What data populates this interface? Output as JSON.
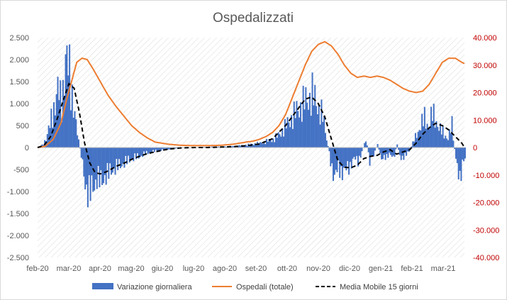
{
  "chart_data": {
    "type": "bar+line",
    "title": "Ospedalizzati",
    "x_categories": [
      "feb-20",
      "mar-20",
      "apr-20",
      "mag-20",
      "giu-20",
      "lug-20",
      "ago-20",
      "set-20",
      "ott-20",
      "nov-20",
      "dic-20",
      "gen-21",
      "feb-21",
      "mar-21"
    ],
    "y_left": {
      "ticks": [
        "2.500",
        "2.000",
        "1.500",
        "1.000",
        "500",
        "0",
        "-500",
        "-1.000",
        "-1.500",
        "-2.000",
        "-2.500"
      ],
      "range": [
        -2500,
        2500
      ]
    },
    "y_right": {
      "ticks": [
        "40.000",
        "30.000",
        "20.000",
        "10.000",
        "0",
        "-10.000",
        "-20.000",
        "-30.000",
        "-40.000"
      ],
      "range": [
        -40000,
        40000
      ],
      "tick_color": "#c00000"
    },
    "colors": {
      "bars": "#4472c4",
      "hospital_line": "#ed7d31",
      "moving_avg": "#000000",
      "hatch": "#d9d9d9"
    },
    "series": [
      {
        "name": "Variazione giornaliera",
        "kind": "bar",
        "axis": "left",
        "points": [
          [
            0,
            0
          ],
          [
            3,
            50
          ],
          [
            6,
            200
          ],
          [
            9,
            500
          ],
          [
            12,
            900
          ],
          [
            15,
            1300
          ],
          [
            18,
            1000
          ],
          [
            21,
            2000
          ],
          [
            24,
            1700
          ],
          [
            27,
            1000
          ],
          [
            30,
            300
          ],
          [
            33,
            -200
          ],
          [
            36,
            -800
          ],
          [
            39,
            -1100
          ],
          [
            42,
            -900
          ],
          [
            45,
            -700
          ],
          [
            48,
            -800
          ],
          [
            51,
            -650
          ],
          [
            54,
            -600
          ],
          [
            57,
            -500
          ],
          [
            60,
            -450
          ],
          [
            63,
            -400
          ],
          [
            66,
            -350
          ],
          [
            69,
            -300
          ],
          [
            72,
            -250
          ],
          [
            75,
            -220
          ],
          [
            78,
            -200
          ],
          [
            81,
            -150
          ],
          [
            84,
            -120
          ],
          [
            87,
            -100
          ],
          [
            90,
            -80
          ],
          [
            95,
            -60
          ],
          [
            100,
            -40
          ],
          [
            105,
            -20
          ],
          [
            110,
            -10
          ],
          [
            120,
            5
          ],
          [
            130,
            15
          ],
          [
            140,
            20
          ],
          [
            150,
            30
          ],
          [
            160,
            60
          ],
          [
            170,
            100
          ],
          [
            180,
            180
          ],
          [
            185,
            300
          ],
          [
            190,
            500
          ],
          [
            195,
            700
          ],
          [
            200,
            900
          ],
          [
            205,
            1050
          ],
          [
            210,
            1200
          ],
          [
            215,
            900
          ],
          [
            218,
            700
          ],
          [
            221,
            200
          ],
          [
            224,
            -300
          ],
          [
            227,
            -700
          ],
          [
            230,
            -450
          ],
          [
            233,
            -550
          ],
          [
            236,
            -500
          ],
          [
            239,
            -400
          ],
          [
            242,
            -250
          ],
          [
            245,
            -300
          ],
          [
            248,
            -100
          ],
          [
            251,
            200
          ],
          [
            254,
            -300
          ],
          [
            257,
            -200
          ],
          [
            260,
            100
          ],
          [
            263,
            -300
          ],
          [
            266,
            -200
          ],
          [
            269,
            -150
          ],
          [
            272,
            -250
          ],
          [
            275,
            50
          ],
          [
            278,
            -300
          ],
          [
            281,
            -150
          ],
          [
            284,
            -100
          ],
          [
            287,
            100
          ],
          [
            290,
            300
          ],
          [
            293,
            500
          ],
          [
            296,
            650
          ],
          [
            299,
            500
          ],
          [
            302,
            750
          ],
          [
            305,
            600
          ],
          [
            308,
            400
          ],
          [
            311,
            300
          ],
          [
            314,
            200
          ],
          [
            317,
            500
          ],
          [
            320,
            -300
          ],
          [
            323,
            -650
          ],
          [
            326,
            -300
          ]
        ]
      },
      {
        "name": "Ospedali (totale)",
        "kind": "line",
        "axis": "right",
        "points": [
          [
            0,
            0
          ],
          [
            6,
            500
          ],
          [
            12,
            3000
          ],
          [
            18,
            9000
          ],
          [
            22,
            17000
          ],
          [
            26,
            24000
          ],
          [
            30,
            31000
          ],
          [
            34,
            32500
          ],
          [
            38,
            32000
          ],
          [
            42,
            29000
          ],
          [
            48,
            24000
          ],
          [
            54,
            19000
          ],
          [
            60,
            15000
          ],
          [
            66,
            11500
          ],
          [
            72,
            8000
          ],
          [
            78,
            5500
          ],
          [
            84,
            3500
          ],
          [
            90,
            2000
          ],
          [
            100,
            1200
          ],
          [
            110,
            800
          ],
          [
            120,
            700
          ],
          [
            130,
            700
          ],
          [
            140,
            800
          ],
          [
            150,
            1200
          ],
          [
            160,
            2000
          ],
          [
            165,
            2300
          ],
          [
            170,
            3000
          ],
          [
            175,
            4000
          ],
          [
            180,
            5500
          ],
          [
            185,
            8000
          ],
          [
            190,
            12000
          ],
          [
            195,
            18000
          ],
          [
            200,
            24000
          ],
          [
            205,
            30000
          ],
          [
            210,
            35000
          ],
          [
            215,
            37500
          ],
          [
            220,
            38500
          ],
          [
            225,
            37000
          ],
          [
            230,
            34000
          ],
          [
            235,
            30000
          ],
          [
            240,
            27000
          ],
          [
            245,
            25500
          ],
          [
            250,
            26000
          ],
          [
            255,
            25500
          ],
          [
            260,
            26000
          ],
          [
            265,
            25500
          ],
          [
            270,
            24500
          ],
          [
            275,
            23000
          ],
          [
            280,
            21500
          ],
          [
            285,
            20500
          ],
          [
            290,
            20000
          ],
          [
            295,
            20500
          ],
          [
            300,
            23000
          ],
          [
            305,
            27000
          ],
          [
            310,
            31000
          ],
          [
            315,
            32500
          ],
          [
            320,
            32500
          ],
          [
            325,
            31000
          ],
          [
            327,
            30500
          ]
        ]
      },
      {
        "name": "Media Mobile 15 giorni",
        "kind": "line",
        "axis": "left",
        "style": "dashed",
        "points": [
          [
            0,
            0
          ],
          [
            5,
            50
          ],
          [
            10,
            250
          ],
          [
            15,
            650
          ],
          [
            20,
            1100
          ],
          [
            24,
            1450
          ],
          [
            28,
            1350
          ],
          [
            32,
            800
          ],
          [
            36,
            100
          ],
          [
            40,
            -350
          ],
          [
            44,
            -570
          ],
          [
            48,
            -600
          ],
          [
            52,
            -560
          ],
          [
            56,
            -500
          ],
          [
            60,
            -430
          ],
          [
            66,
            -360
          ],
          [
            72,
            -270
          ],
          [
            78,
            -200
          ],
          [
            84,
            -140
          ],
          [
            90,
            -100
          ],
          [
            96,
            -60
          ],
          [
            102,
            -30
          ],
          [
            110,
            -10
          ],
          [
            120,
            0
          ],
          [
            130,
            0
          ],
          [
            140,
            10
          ],
          [
            150,
            20
          ],
          [
            160,
            40
          ],
          [
            170,
            80
          ],
          [
            175,
            140
          ],
          [
            180,
            200
          ],
          [
            185,
            350
          ],
          [
            190,
            500
          ],
          [
            195,
            700
          ],
          [
            200,
            900
          ],
          [
            205,
            1100
          ],
          [
            210,
            1150
          ],
          [
            215,
            1000
          ],
          [
            220,
            700
          ],
          [
            225,
            200
          ],
          [
            230,
            -300
          ],
          [
            235,
            -450
          ],
          [
            240,
            -460
          ],
          [
            245,
            -400
          ],
          [
            250,
            -250
          ],
          [
            255,
            -200
          ],
          [
            260,
            -180
          ],
          [
            265,
            -100
          ],
          [
            270,
            -50
          ],
          [
            275,
            -150
          ],
          [
            280,
            -100
          ],
          [
            285,
            -50
          ],
          [
            290,
            100
          ],
          [
            295,
            300
          ],
          [
            300,
            450
          ],
          [
            305,
            550
          ],
          [
            310,
            500
          ],
          [
            315,
            400
          ],
          [
            320,
            250
          ],
          [
            325,
            100
          ],
          [
            327,
            0
          ]
        ]
      }
    ],
    "legend": [
      "Variazione giornaliera",
      "Ospedali (totale)",
      "Media Mobile 15 giorni"
    ],
    "legend_position": "bottom",
    "grid": "none",
    "background": "diagonal hatch"
  }
}
